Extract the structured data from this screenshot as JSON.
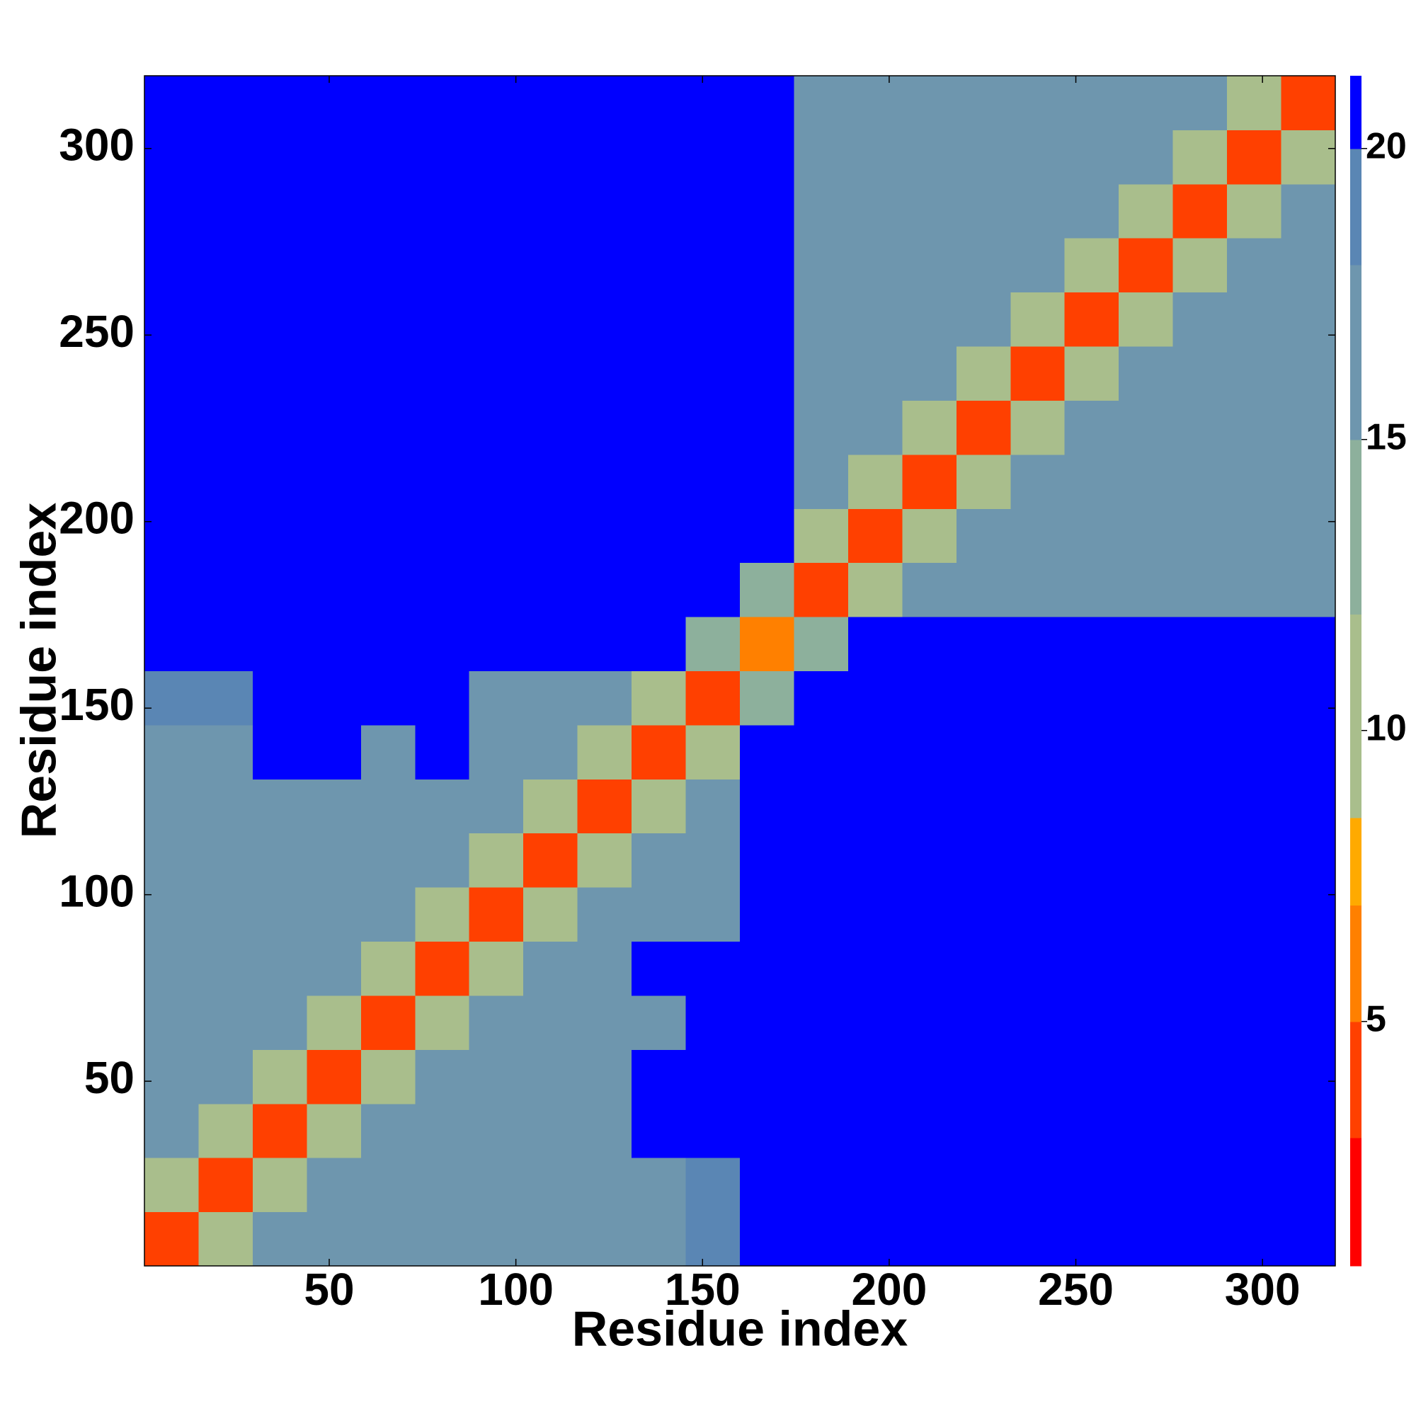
{
  "chart_data": {
    "type": "heatmap",
    "x_label": "Residue index",
    "y_label": "Residue index",
    "xlim": [
      0.5,
      319.5
    ],
    "ylim": [
      0.5,
      319.5
    ],
    "xticks": [
      50,
      100,
      150,
      200,
      250,
      300
    ],
    "yticks": [
      50,
      100,
      150,
      200,
      250,
      300
    ],
    "x_edges": [
      0.5,
      15,
      29.5,
      44,
      58.5,
      73,
      87.5,
      102,
      116.5,
      131,
      145.5,
      160,
      174.5,
      189,
      203.5,
      218,
      232.5,
      247,
      261.5,
      276,
      290.5,
      305,
      319.5
    ],
    "y_edges": [
      0.5,
      15,
      29.5,
      44,
      58.5,
      73,
      87.5,
      102,
      116.5,
      131,
      145.5,
      160,
      174.5,
      189,
      203.5,
      218,
      232.5,
      247,
      261.5,
      276,
      290.5,
      305,
      319.5
    ],
    "z": [
      [
        4,
        10,
        16,
        16,
        16,
        16,
        16,
        16,
        16,
        16,
        18,
        21,
        21,
        21,
        21,
        21,
        21,
        21,
        21,
        21,
        21,
        21
      ],
      [
        10,
        4,
        10,
        16,
        16,
        16,
        16,
        16,
        16,
        17,
        18,
        21,
        21,
        21,
        21,
        21,
        21,
        21,
        21,
        21,
        21,
        21
      ],
      [
        16,
        10,
        4,
        10,
        16,
        16,
        16,
        16,
        16,
        21,
        21,
        21,
        21,
        21,
        21,
        21,
        21,
        21,
        21,
        21,
        21,
        21
      ],
      [
        16,
        16,
        10,
        4,
        10,
        16,
        16,
        16,
        16,
        21,
        21,
        21,
        21,
        21,
        21,
        21,
        21,
        21,
        21,
        21,
        21,
        21
      ],
      [
        16,
        16,
        16,
        10,
        4,
        10,
        16,
        16,
        16,
        17,
        21,
        21,
        21,
        21,
        21,
        21,
        21,
        21,
        21,
        21,
        21,
        21
      ],
      [
        16,
        16,
        16,
        16,
        10,
        4,
        10,
        16,
        16,
        21,
        21,
        21,
        21,
        21,
        21,
        21,
        21,
        21,
        21,
        21,
        21,
        21
      ],
      [
        16,
        16,
        16,
        16,
        16,
        10,
        4,
        10,
        16,
        16,
        16,
        21,
        21,
        21,
        21,
        21,
        21,
        21,
        21,
        21,
        21,
        21
      ],
      [
        16,
        16,
        16,
        16,
        16,
        16,
        10,
        4,
        10,
        16,
        16,
        21,
        21,
        21,
        21,
        21,
        21,
        21,
        21,
        21,
        21,
        21
      ],
      [
        16,
        16,
        16,
        16,
        16,
        16,
        16,
        10,
        4,
        10,
        16,
        21,
        21,
        21,
        21,
        21,
        21,
        21,
        21,
        21,
        21,
        21
      ],
      [
        16,
        17,
        21,
        21,
        17,
        21,
        16,
        16,
        10,
        4,
        10,
        21,
        21,
        21,
        21,
        21,
        21,
        21,
        21,
        21,
        21,
        21
      ],
      [
        18,
        18,
        21,
        21,
        21,
        21,
        16,
        16,
        16,
        10,
        4,
        14,
        21,
        21,
        21,
        21,
        21,
        21,
        21,
        21,
        21,
        21
      ],
      [
        21,
        21,
        21,
        21,
        21,
        21,
        21,
        21,
        21,
        21,
        14,
        6,
        14,
        21,
        21,
        21,
        21,
        21,
        21,
        21,
        21,
        21
      ],
      [
        21,
        21,
        21,
        21,
        21,
        21,
        21,
        21,
        21,
        21,
        21,
        14,
        4,
        10,
        15,
        15,
        15,
        15,
        15,
        15,
        15,
        15
      ],
      [
        21,
        21,
        21,
        21,
        21,
        21,
        21,
        21,
        21,
        21,
        21,
        21,
        10,
        4,
        10,
        15,
        15,
        15,
        15,
        15,
        15,
        15
      ],
      [
        21,
        21,
        21,
        21,
        21,
        21,
        21,
        21,
        21,
        21,
        21,
        21,
        15,
        10,
        4,
        10,
        15,
        15,
        15,
        15,
        15,
        15
      ],
      [
        21,
        21,
        21,
        21,
        21,
        21,
        21,
        21,
        21,
        21,
        21,
        21,
        15,
        15,
        10,
        4,
        10,
        15,
        15,
        15,
        15,
        15
      ],
      [
        21,
        21,
        21,
        21,
        21,
        21,
        21,
        21,
        21,
        21,
        21,
        21,
        15,
        15,
        15,
        10,
        4,
        10,
        15,
        15,
        15,
        15
      ],
      [
        21,
        21,
        21,
        21,
        21,
        21,
        21,
        21,
        21,
        21,
        21,
        21,
        15,
        15,
        15,
        15,
        10,
        4,
        10,
        15,
        15,
        15
      ],
      [
        21,
        21,
        21,
        21,
        21,
        21,
        21,
        21,
        21,
        21,
        21,
        21,
        15,
        15,
        15,
        15,
        15,
        10,
        4,
        10,
        15,
        15
      ],
      [
        21,
        21,
        21,
        21,
        21,
        21,
        21,
        21,
        21,
        21,
        21,
        21,
        15,
        15,
        15,
        15,
        15,
        15,
        10,
        4,
        10,
        15
      ],
      [
        21,
        21,
        21,
        21,
        21,
        21,
        21,
        21,
        21,
        21,
        21,
        21,
        15,
        15,
        15,
        15,
        15,
        15,
        15,
        10,
        4,
        10
      ],
      [
        21,
        21,
        21,
        21,
        21,
        21,
        21,
        21,
        21,
        21,
        21,
        21,
        15,
        15,
        15,
        15,
        15,
        15,
        15,
        15,
        10,
        4
      ]
    ],
    "color_bounds": [
      0.8,
      3,
      5,
      7,
      8.5,
      12,
      15,
      18,
      20,
      21.25
    ],
    "colors": [
      "#ff0000",
      "#ff4000",
      "#ff8000",
      "#ffaa00",
      "#a9be8c",
      "#8db09c",
      "#6e96ae",
      "#5a86b4",
      "#0000ff"
    ],
    "clim": [
      0.8,
      21.25
    ],
    "cticks": [
      5,
      10,
      15,
      20
    ]
  }
}
